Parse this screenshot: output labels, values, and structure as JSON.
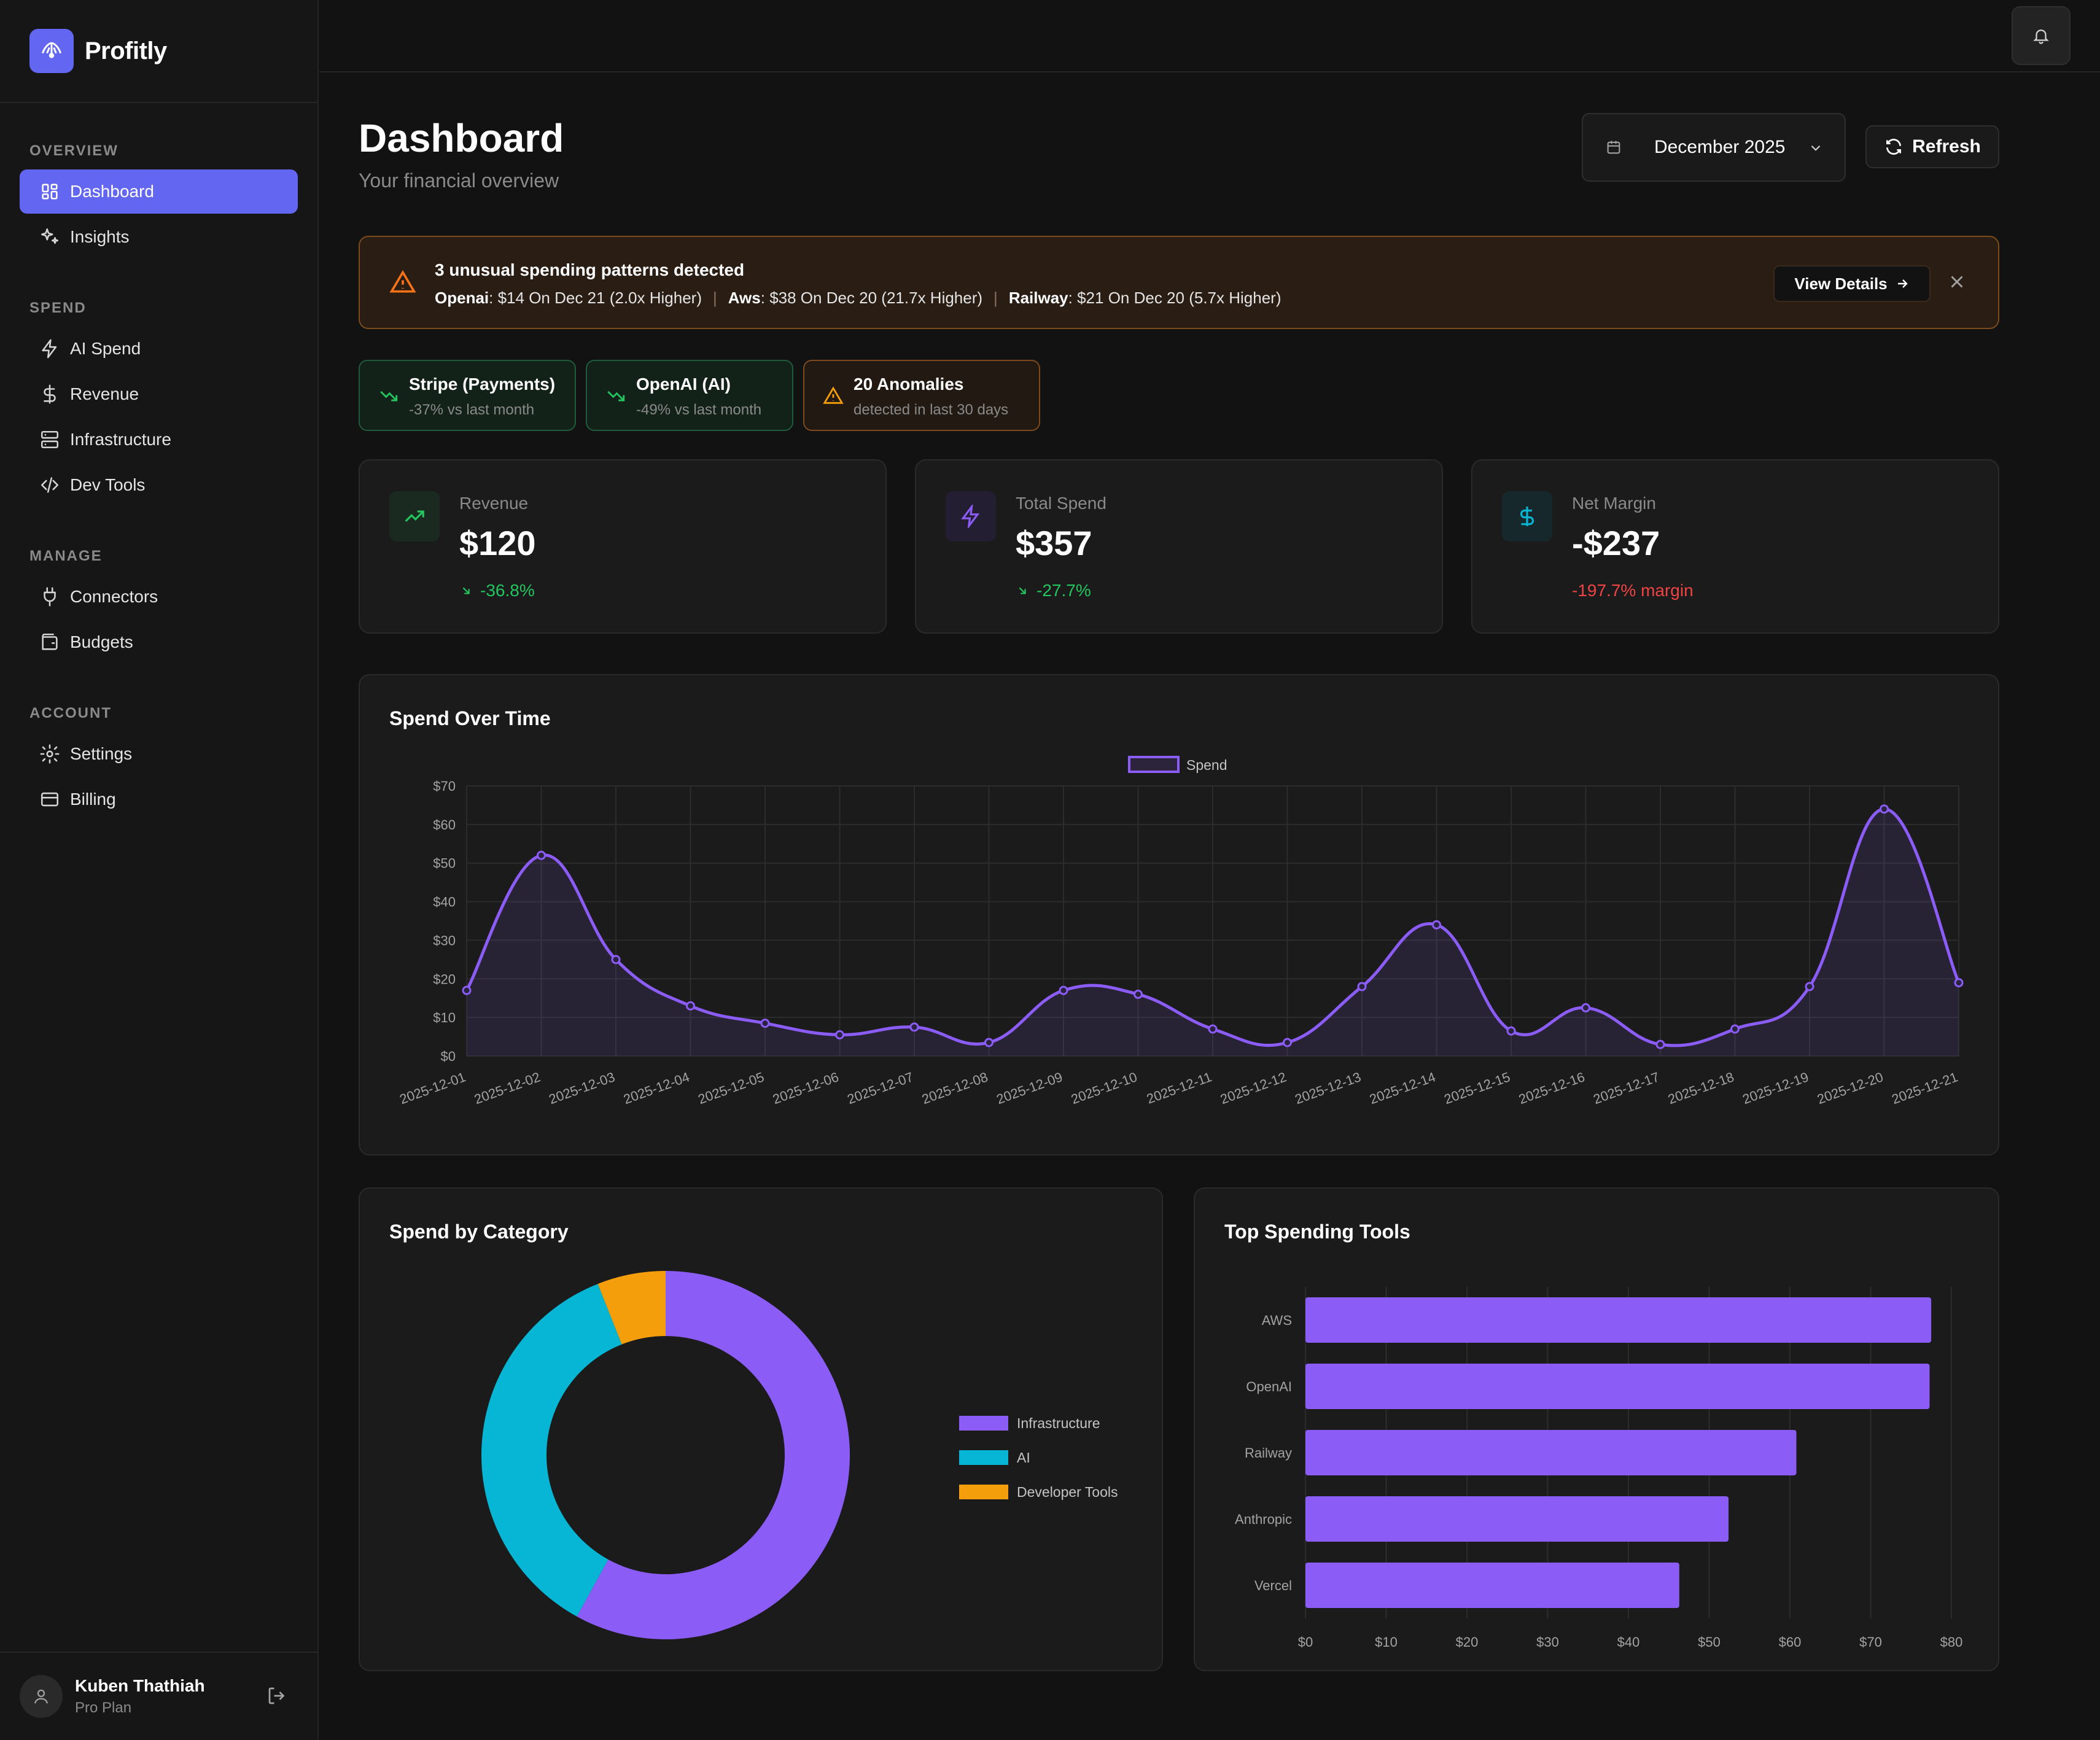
{
  "brand": {
    "name": "Profitly"
  },
  "nav": {
    "sections": [
      {
        "heading": "OVERVIEW",
        "items": [
          {
            "label": "Dashboard",
            "icon": "dashboard-icon",
            "active": true
          },
          {
            "label": "Insights",
            "icon": "sparkles-icon"
          }
        ]
      },
      {
        "heading": "SPEND",
        "items": [
          {
            "label": "AI Spend",
            "icon": "zap-icon"
          },
          {
            "label": "Revenue",
            "icon": "dollar-icon"
          },
          {
            "label": "Infrastructure",
            "icon": "server-icon"
          },
          {
            "label": "Dev Tools",
            "icon": "code-icon"
          }
        ]
      },
      {
        "heading": "MANAGE",
        "items": [
          {
            "label": "Connectors",
            "icon": "plug-icon"
          },
          {
            "label": "Budgets",
            "icon": "wallet-icon"
          }
        ]
      },
      {
        "heading": "ACCOUNT",
        "items": [
          {
            "label": "Settings",
            "icon": "gear-icon"
          },
          {
            "label": "Billing",
            "icon": "credit-card-icon"
          }
        ]
      }
    ]
  },
  "user": {
    "name": "Kuben Thathiah",
    "plan": "Pro Plan"
  },
  "header": {
    "title": "Dashboard",
    "subtitle": "Your financial overview",
    "month": "December 2025",
    "refresh_label": "Refresh"
  },
  "alert": {
    "title": "3 unusual spending patterns detected",
    "items": [
      {
        "source": "Openai",
        "text": ": $14 On Dec 21 (2.0x Higher)"
      },
      {
        "source": "Aws",
        "text": ": $38 On Dec 20 (21.7x Higher)"
      },
      {
        "source": "Railway",
        "text": ": $21 On Dec 20 (5.7x Higher)"
      }
    ],
    "separator": "|",
    "view_details_label": "View Details"
  },
  "chips": [
    {
      "title": "Stripe (Payments)",
      "sub": "-37% vs last month",
      "tone": "green"
    },
    {
      "title": "OpenAI (AI)",
      "sub": "-49% vs last month",
      "tone": "green"
    },
    {
      "title": "20 Anomalies",
      "sub": "detected in last 30 days",
      "tone": "amber"
    }
  ],
  "stats": [
    {
      "label": "Revenue",
      "value": "$120",
      "change": "-36.8%",
      "change_color": "#22c55e",
      "icon_color": "#22c55e"
    },
    {
      "label": "Total Spend",
      "value": "$357",
      "change": "-27.7%",
      "change_color": "#22c55e",
      "icon_color": "#8b5cf6"
    },
    {
      "label": "Net Margin",
      "value": "-$237",
      "change": "-197.7% margin",
      "change_color": "#ef4444",
      "icon_color": "#06b6d4"
    }
  ],
  "spend_over_time": {
    "title": "Spend Over Time"
  },
  "spend_by_category": {
    "title": "Spend by Category"
  },
  "top_tools": {
    "title": "Top Spending Tools"
  },
  "colors": {
    "accent": "#6366f1",
    "purple": "#8b5cf6",
    "cyan": "#06b6d4",
    "amber": "#f59e0b"
  },
  "chart_data": [
    {
      "type": "line",
      "title": "Spend Over Time",
      "x": [
        "2025-12-01",
        "2025-12-02",
        "2025-12-03",
        "2025-12-04",
        "2025-12-05",
        "2025-12-06",
        "2025-12-07",
        "2025-12-08",
        "2025-12-09",
        "2025-12-10",
        "2025-12-11",
        "2025-12-12",
        "2025-12-13",
        "2025-12-14",
        "2025-12-15",
        "2025-12-16",
        "2025-12-17",
        "2025-12-18",
        "2025-12-19",
        "2025-12-20",
        "2025-12-21"
      ],
      "series": [
        {
          "name": "Spend",
          "values": [
            17,
            52,
            25,
            13,
            8.5,
            5.5,
            7.5,
            3.5,
            17,
            16,
            7,
            3.5,
            18,
            34,
            6.5,
            12.5,
            3,
            7,
            18,
            64,
            19
          ]
        }
      ],
      "yticks": [
        "$0",
        "$10",
        "$20",
        "$30",
        "$40",
        "$50",
        "$60",
        "$70"
      ],
      "ylim": [
        0,
        70
      ],
      "grid": true,
      "legend": "top-center"
    },
    {
      "type": "pie",
      "title": "Spend by Category",
      "categories": [
        "Infrastructure",
        "AI",
        "Developer Tools"
      ],
      "values": [
        58,
        36,
        6
      ],
      "colors": [
        "#8b5cf6",
        "#06b6d4",
        "#f59e0b"
      ],
      "legend": "right"
    },
    {
      "type": "bar",
      "title": "Top Spending Tools",
      "orientation": "horizontal",
      "categories": [
        "AWS",
        "OpenAI",
        "Railway",
        "Anthropic",
        "Vercel"
      ],
      "values": [
        77.5,
        77.3,
        60.8,
        52.4,
        46.3
      ],
      "xticks": [
        "$0",
        "$10",
        "$20",
        "$30",
        "$40",
        "$50",
        "$60",
        "$70",
        "$80"
      ],
      "xlim": [
        0,
        80
      ],
      "grid": true
    }
  ]
}
